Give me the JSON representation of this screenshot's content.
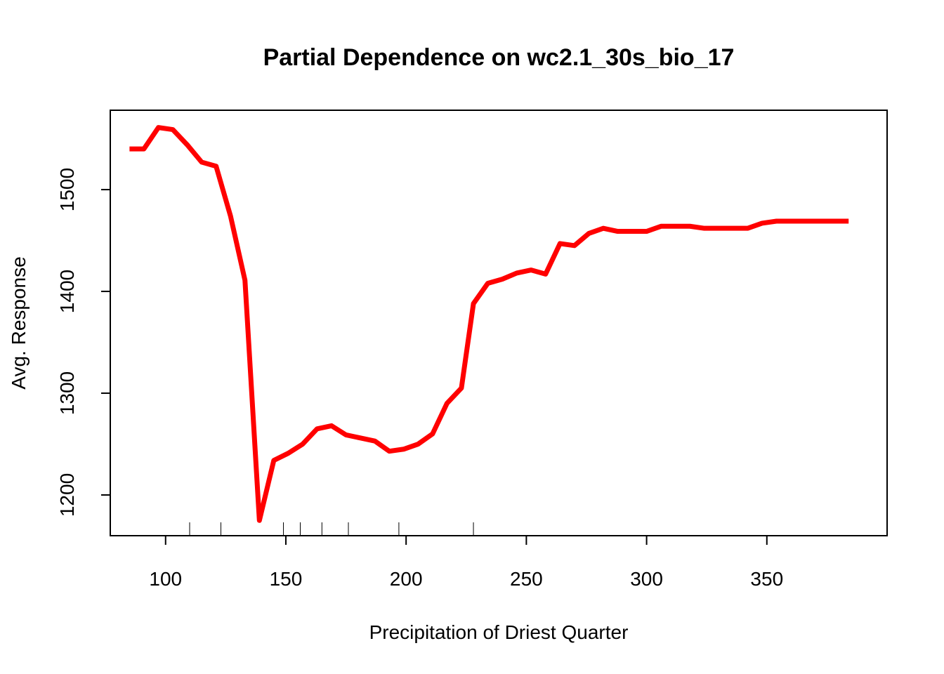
{
  "chart_data": {
    "type": "line",
    "title": "Partial Dependence on wc2.1_30s_bio_17",
    "xlabel": "Precipitation of Driest Quarter",
    "ylabel": "Avg. Response",
    "xlim": [
      77,
      400
    ],
    "ylim": [
      1160,
      1578
    ],
    "x_ticks": [
      100,
      150,
      200,
      250,
      300,
      350
    ],
    "y_ticks": [
      1200,
      1300,
      1400,
      1500
    ],
    "line_color": "#ff0000",
    "grid": false,
    "legend": "none",
    "series": [
      {
        "x": [
          85,
          91,
          97,
          103,
          109,
          115,
          121,
          127,
          133,
          139,
          145,
          151,
          157,
          163,
          169,
          175,
          181,
          187,
          193,
          199,
          205,
          211,
          217,
          223,
          228,
          234,
          240,
          246,
          252,
          258,
          264,
          270,
          276,
          282,
          288,
          300,
          306,
          318,
          324,
          342,
          348,
          354,
          384
        ],
        "y": [
          1540,
          1540,
          1561,
          1559,
          1544,
          1527,
          1523,
          1474,
          1411,
          1175,
          1234,
          1241,
          1250,
          1265,
          1268,
          1259,
          1256,
          1253,
          1243,
          1245,
          1250,
          1260,
          1290,
          1305,
          1388,
          1408,
          1412,
          1418,
          1421,
          1417,
          1447,
          1445,
          1457,
          1462,
          1459,
          1459,
          1464,
          1464,
          1462,
          1462,
          1467,
          1469,
          1469
        ]
      }
    ],
    "rug_x": [
      110,
      123,
      149,
      156,
      165,
      176,
      197,
      228
    ]
  }
}
